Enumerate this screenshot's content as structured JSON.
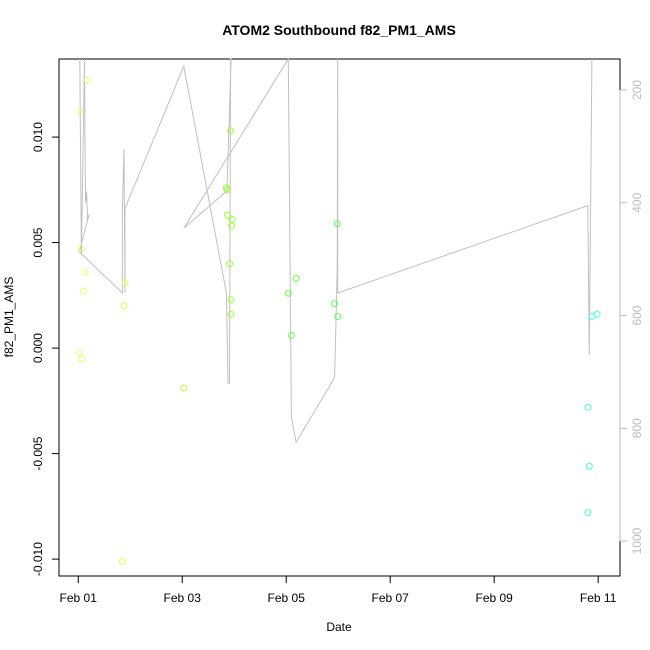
{
  "chart_data": {
    "type": "scatter",
    "title": "ATOM2 Southbound f82_PM1_AMS",
    "xlabel": "Date",
    "ylabel": "f82_PM1_AMS",
    "x_ticks": [
      {
        "day": 1,
        "label": "Feb 01"
      },
      {
        "day": 3,
        "label": "Feb 03"
      },
      {
        "day": 5,
        "label": "Feb 05"
      },
      {
        "day": 7,
        "label": "Feb 07"
      },
      {
        "day": 9,
        "label": "Feb 09"
      },
      {
        "day": 11,
        "label": "Feb 11"
      }
    ],
    "xlim": [
      0.63,
      11.42
    ],
    "ylim": [
      -0.0108,
      0.0137
    ],
    "y_ticks": [
      -0.01,
      -0.005,
      0.0,
      0.005,
      0.01
    ],
    "y_tick_labels": [
      "-0.010",
      "-0.005",
      "0.000",
      "0.005",
      "0.010"
    ],
    "y2lim": [
      1062,
      145
    ],
    "y2_ticks": [
      200,
      400,
      600,
      800,
      1000
    ],
    "y2_tick_labels": [
      "200",
      "400",
      "600",
      "800",
      "1000"
    ],
    "series": [
      {
        "kind": "points",
        "points": [
          {
            "x": 1.18,
            "y": 0.0127,
            "color": "#e6ff66"
          },
          {
            "x": 1.03,
            "y": 0.0112,
            "color": "#e6ff66"
          },
          {
            "x": 1.06,
            "y": 0.0047,
            "color": "#e6ff66"
          },
          {
            "x": 1.13,
            "y": 0.0036,
            "color": "#e6ff66"
          },
          {
            "x": 1.1,
            "y": 0.0027,
            "color": "#e6ff66"
          },
          {
            "x": 1.02,
            "y": -0.0002,
            "color": "#e6ff66"
          },
          {
            "x": 1.07,
            "y": -0.0005,
            "color": "#e6ff66"
          },
          {
            "x": 1.9,
            "y": 0.0031,
            "color": "#ddff55"
          },
          {
            "x": 1.88,
            "y": 0.002,
            "color": "#ddff55"
          },
          {
            "x": 1.85,
            "y": -0.0101,
            "color": "#ddff55"
          },
          {
            "x": 3.03,
            "y": -0.0019,
            "color": "#b7ff33"
          },
          {
            "x": 3.93,
            "y": 0.0103,
            "color": "#99ff33"
          },
          {
            "x": 3.85,
            "y": 0.0076,
            "color": "#99ff33"
          },
          {
            "x": 3.86,
            "y": 0.0075,
            "color": "#99ff33"
          },
          {
            "x": 3.87,
            "y": 0.0063,
            "color": "#99ff33"
          },
          {
            "x": 3.96,
            "y": 0.0061,
            "color": "#99ff33"
          },
          {
            "x": 3.95,
            "y": 0.0058,
            "color": "#99ff33"
          },
          {
            "x": 3.91,
            "y": 0.004,
            "color": "#99ff33"
          },
          {
            "x": 3.94,
            "y": 0.0023,
            "color": "#99ff33"
          },
          {
            "x": 3.94,
            "y": 0.0016,
            "color": "#99ff33"
          },
          {
            "x": 5.04,
            "y": 0.0026,
            "color": "#66ff44"
          },
          {
            "x": 5.19,
            "y": 0.0033,
            "color": "#66ff44"
          },
          {
            "x": 5.1,
            "y": 0.0006,
            "color": "#66ff44"
          },
          {
            "x": 5.98,
            "y": 0.0059,
            "color": "#55ff55"
          },
          {
            "x": 5.93,
            "y": 0.0021,
            "color": "#55ff55"
          },
          {
            "x": 5.99,
            "y": 0.0015,
            "color": "#55ff55"
          },
          {
            "x": 10.8,
            "y": -0.0028,
            "color": "#44ffbb"
          },
          {
            "x": 10.83,
            "y": -0.0056,
            "color": "#44ffbb"
          },
          {
            "x": 10.8,
            "y": -0.0078,
            "color": "#44ffbb"
          },
          {
            "x": 10.88,
            "y": 0.0015,
            "color": "#44ffdd"
          },
          {
            "x": 10.98,
            "y": 0.0016,
            "color": "#44ffdd"
          }
        ]
      },
      {
        "kind": "line",
        "axis": "right",
        "color": "#c0c0c0",
        "points": [
          {
            "x": 1.03,
            "y": 145
          },
          {
            "x": 1.06,
            "y": 490
          },
          {
            "x": 1.1,
            "y": 270
          },
          {
            "x": 1.12,
            "y": 145
          },
          {
            "x": 1.14,
            "y": 400
          },
          {
            "x": 1.16,
            "y": 380
          },
          {
            "x": 1.18,
            "y": 430
          },
          {
            "x": 1.21,
            "y": 420
          },
          {
            "x": 1.02,
            "y": 487
          },
          {
            "x": 1.85,
            "y": 560
          },
          {
            "x": 1.85,
            "y": 410
          },
          {
            "x": 1.88,
            "y": 305
          },
          {
            "x": 1.9,
            "y": 560
          },
          {
            "x": 1.9,
            "y": 410
          },
          {
            "x": 3.03,
            "y": 158
          },
          {
            "x": 3.85,
            "y": 560
          },
          {
            "x": 3.88,
            "y": 720
          },
          {
            "x": 3.91,
            "y": 720
          },
          {
            "x": 3.93,
            "y": 145
          },
          {
            "x": 3.94,
            "y": 145
          },
          {
            "x": 3.86,
            "y": 380
          },
          {
            "x": 3.85,
            "y": 380
          },
          {
            "x": 3.03,
            "y": 445
          },
          {
            "x": 5.04,
            "y": 145
          },
          {
            "x": 5.1,
            "y": 780
          },
          {
            "x": 5.19,
            "y": 825
          },
          {
            "x": 5.93,
            "y": 710
          },
          {
            "x": 5.98,
            "y": 520
          },
          {
            "x": 5.99,
            "y": 145
          },
          {
            "x": 5.99,
            "y": 560
          },
          {
            "x": 10.8,
            "y": 405
          },
          {
            "x": 10.83,
            "y": 670
          },
          {
            "x": 10.88,
            "y": 145
          }
        ]
      }
    ],
    "grid": false,
    "legend": "none"
  }
}
